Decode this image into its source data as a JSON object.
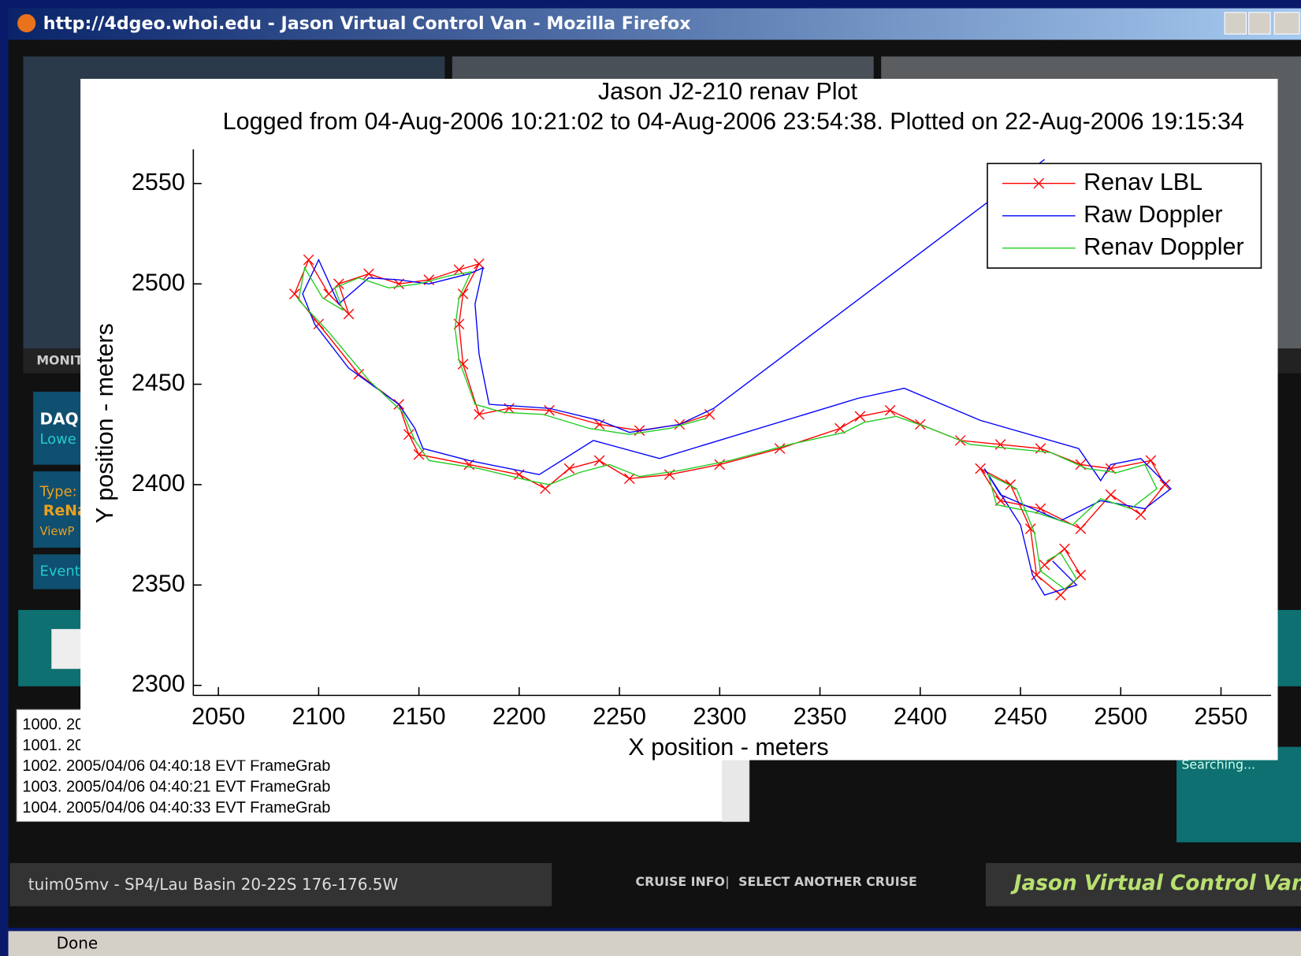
{
  "window": {
    "title": "http://4dgeo.whoi.edu - Jason Virtual Control Van - Mozilla Firefox"
  },
  "panels": {
    "monitor": "MONIT",
    "daq": "DAQ",
    "daq_sub": "Lowe",
    "type": "Type:",
    "type_value": "ReNa",
    "view": "ViewP",
    "event": "Event",
    "searching": "Searching..."
  },
  "log": [
    "1000. 20",
    "1001. 20",
    "1002. 2005/04/06 04:40:18 EVT FrameGrab",
    "1003. 2005/04/06 04:40:21 EVT FrameGrab",
    "1004. 2005/04/06 04:40:33 EVT FrameGrab"
  ],
  "footer": {
    "cruise": "tuim05mv - SP4/Lau Basin 20-22S 176-176.5W",
    "cruise_info": "CRUISE INFO",
    "separator": "|",
    "select": "SELECT ANOTHER CRUISE",
    "brand": "Jason Virtual Control Van"
  },
  "status": "Done",
  "chart_data": {
    "type": "line",
    "title": "Jason J2-210 renav Plot",
    "subtitle": "Logged from 04-Aug-2006 10:21:02 to 04-Aug-2006 23:54:38.  Plotted on 22-Aug-2006 19:15:34",
    "xlabel": "X position - meters",
    "ylabel": "Y position - meters",
    "xlim": [
      2037.5,
      2575
    ],
    "ylim": [
      2295,
      2567
    ],
    "xticks": [
      2050,
      2100,
      2150,
      2200,
      2250,
      2300,
      2350,
      2400,
      2450,
      2500,
      2550
    ],
    "yticks": [
      2300,
      2350,
      2400,
      2450,
      2500,
      2550
    ],
    "legend": "upper right",
    "series": [
      {
        "name": "Renav LBL",
        "color": "#ff0000",
        "marker": "x",
        "x": [
          2295,
          2280,
          2260,
          2240,
          2215,
          2195,
          2180,
          2172,
          2170,
          2172,
          2180,
          2170,
          2155,
          2140,
          2125,
          2110,
          2115,
          2105,
          2095,
          2088,
          2100,
          2120,
          2140,
          2145,
          2150,
          2175,
          2200,
          2213,
          2225,
          2240,
          2255,
          2275,
          2300,
          2330,
          2360,
          2370,
          2385,
          2400,
          2420,
          2440,
          2460,
          2480,
          2495,
          2515,
          2522,
          2510,
          2495,
          2480,
          2460,
          2440,
          2430,
          2445,
          2455,
          2458,
          2470,
          2480,
          2472,
          2462
        ],
        "values": [
          2435,
          2430,
          2427,
          2430,
          2437,
          2438,
          2435,
          2460,
          2480,
          2495,
          2510,
          2507,
          2502,
          2500,
          2505,
          2500,
          2485,
          2495,
          2512,
          2495,
          2480,
          2455,
          2440,
          2425,
          2415,
          2410,
          2405,
          2398,
          2408,
          2412,
          2403,
          2405,
          2410,
          2418,
          2428,
          2434,
          2437,
          2430,
          2422,
          2420,
          2418,
          2410,
          2408,
          2412,
          2400,
          2385,
          2395,
          2378,
          2388,
          2392,
          2408,
          2400,
          2378,
          2355,
          2345,
          2355,
          2368,
          2360
        ]
      },
      {
        "name": "Raw Doppler",
        "color": "#0000ff",
        "x": [
          2462,
          2297,
          2280,
          2255,
          2240,
          2215,
          2185,
          2180,
          2178,
          2182,
          2175,
          2155,
          2140,
          2125,
          2110,
          2100,
          2092,
          2098,
          2115,
          2140,
          2148,
          2152,
          2175,
          2210,
          2237,
          2270,
          2369,
          2392,
          2430,
          2479,
          2490,
          2495,
          2510,
          2525,
          2512,
          2490,
          2470,
          2440,
          2432,
          2450,
          2456,
          2462,
          2478,
          2466
        ],
        "values": [
          2562,
          2438,
          2430,
          2426,
          2432,
          2438,
          2440,
          2465,
          2490,
          2508,
          2505,
          2500,
          2502,
          2503,
          2490,
          2512,
          2495,
          2480,
          2458,
          2440,
          2428,
          2418,
          2412,
          2405,
          2422,
          2413,
          2443,
          2448,
          2432,
          2418,
          2402,
          2410,
          2413,
          2398,
          2388,
          2392,
          2382,
          2395,
          2408,
          2380,
          2355,
          2345,
          2350,
          2362
        ]
      },
      {
        "name": "Renav Doppler",
        "color": "#22cc22",
        "x": [
          2293,
          2275,
          2255,
          2235,
          2212,
          2192,
          2178,
          2170,
          2168,
          2170,
          2176,
          2165,
          2150,
          2135,
          2120,
          2108,
          2112,
          2102,
          2093,
          2090,
          2105,
          2125,
          2142,
          2148,
          2155,
          2180,
          2205,
          2215,
          2230,
          2245,
          2260,
          2280,
          2305,
          2335,
          2362,
          2372,
          2388,
          2405,
          2425,
          2445,
          2465,
          2483,
          2498,
          2512,
          2518,
          2505,
          2490,
          2476,
          2458,
          2438,
          2434,
          2448,
          2457,
          2460,
          2472,
          2478,
          2470,
          2463
        ],
        "values": [
          2433,
          2428,
          2425,
          2428,
          2435,
          2436,
          2440,
          2462,
          2478,
          2493,
          2506,
          2504,
          2500,
          2498,
          2503,
          2498,
          2487,
          2493,
          2508,
          2492,
          2476,
          2452,
          2436,
          2422,
          2412,
          2408,
          2402,
          2400,
          2406,
          2410,
          2404,
          2407,
          2412,
          2420,
          2426,
          2431,
          2434,
          2428,
          2420,
          2418,
          2416,
          2408,
          2406,
          2410,
          2398,
          2388,
          2393,
          2380,
          2386,
          2390,
          2405,
          2398,
          2376,
          2357,
          2348,
          2353,
          2366,
          2362
        ]
      }
    ]
  }
}
